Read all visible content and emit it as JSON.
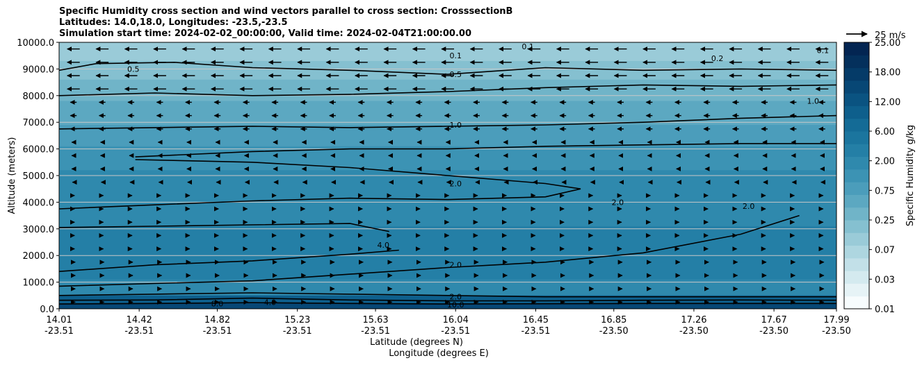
{
  "chart_data": {
    "type": "contourf",
    "title_lines": [
      "Specific Humidity cross section and wind vectors parallel to cross section: CrosssectionB",
      "Latitudes: 14.0,18.0, Longitudes: -23.5,-23.5",
      "Simulation start time: 2024-02-02_00:00:00, Valid time: 2024-02-04T21:00:00.00"
    ],
    "ylabel": "Altitude (meters)",
    "xlabel_lat": "Latitude (degrees N)",
    "xlabel_lon": "Longitude (degrees E)",
    "ylim": [
      0,
      10000
    ],
    "y_ticks": [
      "0.0",
      "1000.0",
      "2000.0",
      "3000.0",
      "4000.0",
      "5000.0",
      "6000.0",
      "7000.0",
      "8000.0",
      "9000.0",
      "10000.0"
    ],
    "y_tick_values": [
      0,
      1000,
      2000,
      3000,
      4000,
      5000,
      6000,
      7000,
      8000,
      9000,
      10000
    ],
    "x_ticks_lat": [
      "14.01",
      "14.42",
      "14.82",
      "15.23",
      "15.63",
      "16.04",
      "16.45",
      "16.85",
      "17.26",
      "17.67",
      "17.99"
    ],
    "x_ticks_lon": [
      "-23.51",
      "-23.51",
      "-23.51",
      "-23.51",
      "-23.51",
      "-23.51",
      "-23.51",
      "-23.50",
      "-23.50",
      "-23.50",
      "-23.50"
    ],
    "x_tick_values": [
      14.01,
      14.42,
      14.82,
      15.23,
      15.63,
      16.04,
      16.45,
      16.85,
      17.26,
      17.67,
      17.99
    ],
    "xlim": [
      14.01,
      17.99
    ],
    "colorbar": {
      "label": "Specific Humidity g/kg",
      "levels": [
        0.01,
        0.02,
        0.03,
        0.05,
        0.07,
        0.1,
        0.25,
        0.5,
        0.75,
        1.0,
        1.5,
        2.0,
        3.0,
        4.0,
        6.0,
        8.0,
        10.0,
        12.0,
        14.0,
        18.0,
        20.0,
        25.0
      ],
      "tick_labels": [
        "0.01",
        "0.03",
        "0.07",
        "0.25",
        "0.75",
        "2.00",
        "6.00",
        "12.00",
        "18.00",
        "25.00"
      ],
      "colors": [
        "#f7fcfd",
        "#e6f3f6",
        "#d4eaef",
        "#c2e0e8",
        "#aed6e0",
        "#9acbd8",
        "#85c0d0",
        "#70b4c8",
        "#5ca8c1",
        "#4b9dbb",
        "#3c93b4",
        "#2f89ad",
        "#247fa6",
        "#1b759e",
        "#146b96",
        "#0e5f8c",
        "#0a5381",
        "#074775",
        "#053b68",
        "#04305c",
        "#032552"
      ]
    },
    "wind_reference": "25 m/s",
    "bands": [
      {
        "z_top": 10000,
        "qv": 0.1
      },
      {
        "z_top": 9300,
        "qv": 0.4
      },
      {
        "z_top": 8600,
        "qv": 0.6
      },
      {
        "z_top": 7800,
        "qv": 0.9
      },
      {
        "z_top": 6900,
        "qv": 1.2
      },
      {
        "z_top": 6100,
        "qv": 1.6
      },
      {
        "z_top": 5200,
        "qv": 2.2
      },
      {
        "z_top": 4100,
        "qv": 2.8
      },
      {
        "z_top": 3100,
        "qv": 3.6
      },
      {
        "z_top": 2000,
        "qv": 3.0
      },
      {
        "z_top": 1100,
        "qv": 2.5
      },
      {
        "z_top": 500,
        "qv": 8.0
      },
      {
        "z_top": 200,
        "qv": 12.0
      }
    ],
    "contour_labels": [
      {
        "text": "0.1",
        "lat": 16.04,
        "z": 9500
      },
      {
        "text": "0.5",
        "lat": 16.04,
        "z": 8800
      },
      {
        "text": "1.0",
        "lat": 16.04,
        "z": 6900
      },
      {
        "text": "2.0",
        "lat": 16.04,
        "z": 4700
      },
      {
        "text": "4.0",
        "lat": 15.67,
        "z": 2400
      },
      {
        "text": "2.0",
        "lat": 16.04,
        "z": 1650
      },
      {
        "text": "2.0",
        "lat": 16.04,
        "z": 450
      },
      {
        "text": "8.0",
        "lat": 14.82,
        "z": 200
      },
      {
        "text": "4.0",
        "lat": 15.09,
        "z": 250
      },
      {
        "text": "10.0",
        "lat": 16.04,
        "z": 150
      },
      {
        "text": "0.5",
        "lat": 14.39,
        "z": 9000
      },
      {
        "text": "2.0",
        "lat": 16.87,
        "z": 4000
      },
      {
        "text": "2.0",
        "lat": 17.54,
        "z": 3850
      },
      {
        "text": "1.0",
        "lat": 17.87,
        "z": 7800
      },
      {
        "text": "0.2",
        "lat": 17.38,
        "z": 9400
      },
      {
        "text": "0.1",
        "lat": 16.41,
        "z": 9850
      },
      {
        "text": "0.1",
        "lat": 17.92,
        "z": 9700
      }
    ],
    "contour_lines": [
      {
        "level": 0.5,
        "points": [
          [
            14.01,
            8950
          ],
          [
            14.2,
            9200
          ],
          [
            14.6,
            9250
          ],
          [
            15.0,
            9050
          ],
          [
            15.5,
            8950
          ],
          [
            16.0,
            8800
          ],
          [
            16.5,
            9050
          ],
          [
            17.0,
            8950
          ],
          [
            17.5,
            9000
          ],
          [
            17.99,
            8950
          ]
        ]
      },
      {
        "level": 1.0,
        "points": [
          [
            14.01,
            6750
          ],
          [
            14.5,
            6800
          ],
          [
            15.0,
            6850
          ],
          [
            15.5,
            6800
          ],
          [
            16.0,
            6850
          ],
          [
            16.5,
            6900
          ],
          [
            17.0,
            7000
          ],
          [
            17.5,
            7150
          ],
          [
            17.99,
            7250
          ]
        ]
      },
      {
        "level": 1.0,
        "points": [
          [
            14.01,
            8000
          ],
          [
            14.5,
            8100
          ],
          [
            15.0,
            8000
          ],
          [
            15.5,
            8050
          ],
          [
            16.0,
            8150
          ],
          [
            16.5,
            8300
          ],
          [
            17.0,
            8400
          ],
          [
            17.5,
            8350
          ],
          [
            17.99,
            8400
          ]
        ]
      },
      {
        "level": 2.0,
        "points": [
          [
            14.4,
            5600
          ],
          [
            15.0,
            5500
          ],
          [
            15.5,
            5300
          ],
          [
            16.0,
            5000
          ],
          [
            16.5,
            4700
          ],
          [
            16.68,
            4500
          ],
          [
            16.5,
            4200
          ],
          [
            16.0,
            4100
          ],
          [
            15.5,
            4150
          ],
          [
            15.0,
            4050
          ],
          [
            14.5,
            3900
          ],
          [
            14.01,
            3750
          ]
        ]
      },
      {
        "level": 2.0,
        "points": [
          [
            14.4,
            5700
          ],
          [
            15.0,
            5900
          ],
          [
            15.5,
            6000
          ],
          [
            16.0,
            6000
          ],
          [
            16.5,
            6100
          ],
          [
            17.0,
            6150
          ],
          [
            17.5,
            6200
          ],
          [
            17.99,
            6200
          ]
        ]
      },
      {
        "level": 4.0,
        "points": [
          [
            14.01,
            3050
          ],
          [
            14.5,
            3100
          ],
          [
            15.0,
            3150
          ],
          [
            15.5,
            3200
          ],
          [
            15.7,
            2900
          ]
        ]
      },
      {
        "level": 2.0,
        "points": [
          [
            14.01,
            1400
          ],
          [
            14.5,
            1650
          ],
          [
            15.0,
            1800
          ],
          [
            15.5,
            2050
          ],
          [
            15.75,
            2200
          ]
        ]
      },
      {
        "level": 2.0,
        "points": [
          [
            14.01,
            850
          ],
          [
            14.5,
            950
          ],
          [
            15.0,
            1050
          ],
          [
            15.5,
            1300
          ],
          [
            16.0,
            1550
          ],
          [
            16.5,
            1750
          ],
          [
            17.0,
            2100
          ],
          [
            17.5,
            2800
          ],
          [
            17.8,
            3500
          ]
        ]
      },
      {
        "level": 4.0,
        "points": [
          [
            14.01,
            500
          ],
          [
            14.5,
            550
          ],
          [
            15.0,
            600
          ],
          [
            15.5,
            550
          ],
          [
            16.0,
            500
          ],
          [
            16.5,
            450
          ],
          [
            17.0,
            450
          ],
          [
            17.5,
            450
          ],
          [
            17.99,
            450
          ]
        ]
      },
      {
        "level": 8.0,
        "points": [
          [
            14.01,
            320
          ],
          [
            14.5,
            330
          ],
          [
            15.0,
            400
          ],
          [
            15.5,
            330
          ],
          [
            16.0,
            300
          ],
          [
            16.5,
            300
          ],
          [
            17.0,
            320
          ],
          [
            17.5,
            330
          ],
          [
            17.99,
            320
          ]
        ]
      },
      {
        "level": 10.0,
        "points": [
          [
            14.01,
            180
          ],
          [
            14.5,
            200
          ],
          [
            15.0,
            230
          ],
          [
            15.5,
            200
          ],
          [
            16.0,
            180
          ],
          [
            16.5,
            190
          ],
          [
            17.0,
            200
          ],
          [
            17.5,
            200
          ],
          [
            17.99,
            200
          ]
        ]
      }
    ]
  }
}
